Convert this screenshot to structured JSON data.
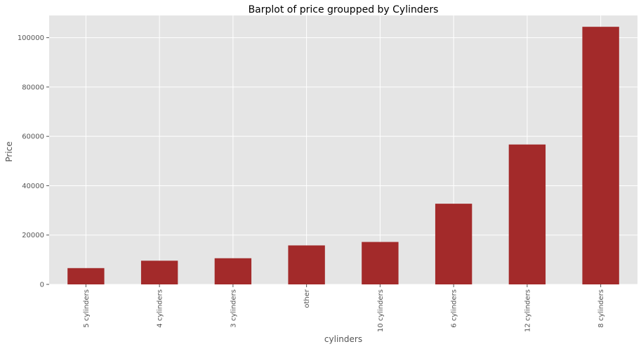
{
  "chart_data": {
    "type": "bar",
    "title": "Barplot of price groupped by Cylinders",
    "xlabel": "cylinders",
    "ylabel": "Price",
    "categories": [
      "5 cylinders",
      "4 cylinders",
      "3 cylinders",
      "other",
      "10 cylinders",
      "6 cylinders",
      "12 cylinders",
      "8 cylinders"
    ],
    "values": [
      6600,
      9600,
      10600,
      15800,
      17200,
      32700,
      56700,
      104400
    ],
    "ylim": [
      0,
      109000
    ],
    "yticks": [
      0,
      20000,
      40000,
      60000,
      80000,
      100000
    ],
    "grid": true,
    "legend": "none",
    "style": {
      "bar_color": "#a32a2a",
      "background_color": "#e5e5e5",
      "grid_color": "#ffffff",
      "text_color": "#555555",
      "title_color": "#000000"
    }
  }
}
